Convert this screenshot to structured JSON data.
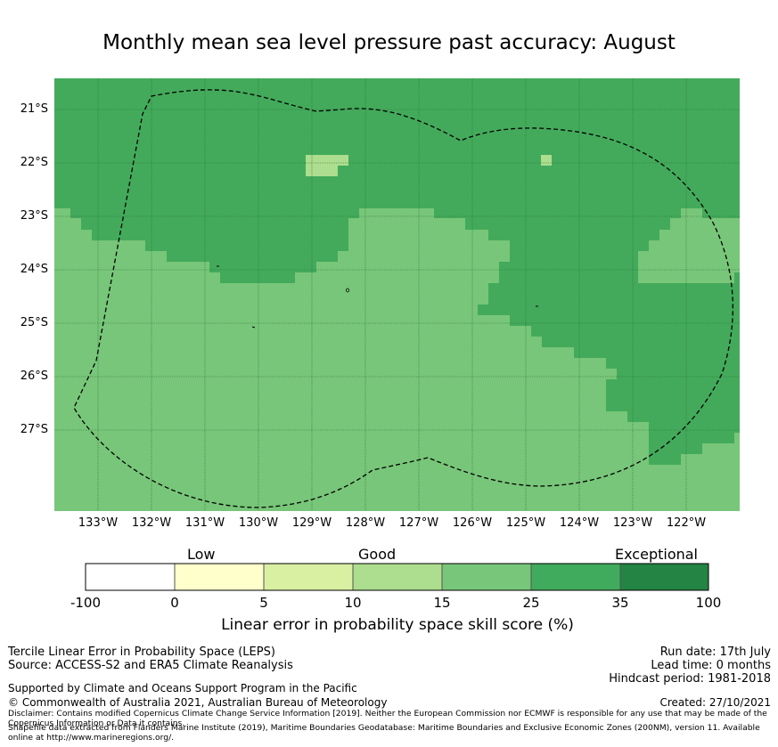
{
  "title": "Monthly mean sea level pressure past accuracy: August",
  "map": {
    "lat_labels": [
      "21°S",
      "22°S",
      "23°S",
      "24°S",
      "25°S",
      "26°S",
      "27°S"
    ],
    "lon_labels": [
      "133°W",
      "132°W",
      "131°W",
      "130°W",
      "129°W",
      "128°W",
      "127°W",
      "126°W",
      "125°W",
      "124°W",
      "123°W",
      "122°W"
    ],
    "colors": {
      "class_25_35": "#43aa5b",
      "class_15_25": "#78c679",
      "class_10_15": "#addd8e",
      "grid": "#2a6e3a",
      "boundary": "#000000"
    }
  },
  "colorbar": {
    "categories": [
      "Low",
      "Good",
      "Exceptional"
    ],
    "ticks": [
      "-100",
      "0",
      "5",
      "10",
      "15",
      "25",
      "35",
      "100"
    ],
    "colors": [
      "#ffffff",
      "#ffffcc",
      "#d9f0a3",
      "#addd8e",
      "#78c679",
      "#41ab5d",
      "#238443"
    ],
    "title": "Linear error in probability space skill score (%)"
  },
  "footer": {
    "method": "Tercile Linear Error in Probability Space (LEPS)",
    "source": "Source: ACCESS-S2 and ERA5 Climate Reanalysis",
    "run_date": "Run date: 17th July",
    "lead_time": "Lead time: 0 months",
    "hindcast": "Hindcast period: 1981-2018",
    "support": "Supported by Climate and Oceans Support Program in the Pacific",
    "copyright": "© Commonwealth of Australia 2021, Australian Bureau of Meteorology",
    "created": "Created: 27/10/2021",
    "disclaimer": "Disclaimer: Contains modified Copernicus Climate Change Service Information [2019]. Neither the European Commission nor ECMWF is responsible for any use that may be made of the Copernicus Information or Data it contains.",
    "shapefile": "Shapefile data extracted from Flanders Marine Institute (2019), Maritime Boundaries Geodatabase: Maritime Boundaries and Exclusive Economic Zones (200NM), version 11. Available online at http://www.marineregions.org/."
  }
}
